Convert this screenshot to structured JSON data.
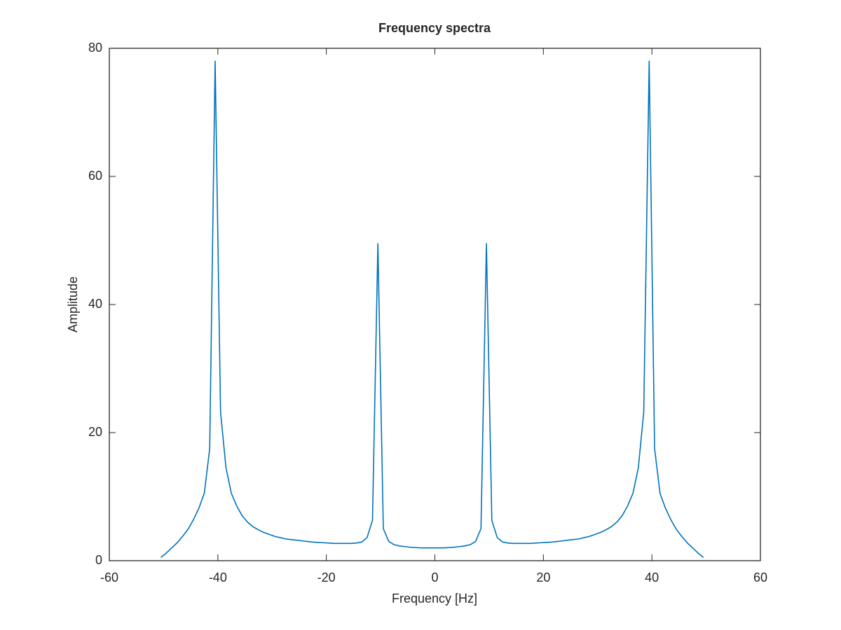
{
  "chart_data": {
    "type": "line",
    "title": "Frequency spectra",
    "xlabel": "Frequency [Hz]",
    "ylabel": "Amplitude",
    "x": [
      -50.5,
      -49.5,
      -48.5,
      -47.5,
      -46.5,
      -45.5,
      -44.5,
      -43.5,
      -42.5,
      -41.5,
      -40.5,
      -39.5,
      -38.5,
      -37.5,
      -36.5,
      -35.5,
      -34.5,
      -33.5,
      -32.5,
      -31.5,
      -30.5,
      -29.5,
      -28.5,
      -27.5,
      -26.5,
      -25.5,
      -24.5,
      -23.5,
      -22.5,
      -21.5,
      -20.5,
      -19.5,
      -18.5,
      -17.5,
      -16.5,
      -15.5,
      -14.5,
      -13.5,
      -12.5,
      -11.5,
      -10.5,
      -9.5,
      -8.5,
      -7.5,
      -6.5,
      -5.5,
      -4.5,
      -3.5,
      -2.5,
      -1.5,
      -0.5,
      0.5,
      1.5,
      2.5,
      3.5,
      4.5,
      5.5,
      6.5,
      7.5,
      8.5,
      9.5,
      10.5,
      11.5,
      12.5,
      13.5,
      14.5,
      15.5,
      16.5,
      17.5,
      18.5,
      19.5,
      20.5,
      21.5,
      22.5,
      23.5,
      24.5,
      25.5,
      26.5,
      27.5,
      28.5,
      29.5,
      30.5,
      31.5,
      32.5,
      33.5,
      34.5,
      35.5,
      36.5,
      37.5,
      38.5,
      39.5,
      40.5,
      41.5,
      42.5,
      43.5,
      44.5,
      45.5,
      46.5,
      47.5,
      48.5,
      49.5
    ],
    "series": [
      {
        "color": "#0072bd",
        "values": [
          0.5,
          1.2,
          2.0,
          2.8,
          3.8,
          4.9,
          6.4,
          8.2,
          10.5,
          17.5,
          78,
          23.2,
          14.5,
          10.5,
          8.5,
          7.0,
          6.0,
          5.3,
          4.8,
          4.4,
          4.1,
          3.8,
          3.6,
          3.4,
          3.3,
          3.2,
          3.1,
          3.0,
          2.9,
          2.85,
          2.8,
          2.75,
          2.7,
          2.7,
          2.7,
          2.7,
          2.75,
          2.9,
          3.6,
          6.3,
          49.5,
          5,
          3.0,
          2.5,
          2.3,
          2.2,
          2.1,
          2.05,
          2.0,
          2.0,
          2.0,
          2.0,
          2.0,
          2.05,
          2.1,
          2.2,
          2.3,
          2.5,
          3.0,
          5,
          49.5,
          6.3,
          3.6,
          2.9,
          2.75,
          2.7,
          2.7,
          2.7,
          2.7,
          2.75,
          2.8,
          2.85,
          2.9,
          3.0,
          3.1,
          3.2,
          3.3,
          3.4,
          3.6,
          3.8,
          4.1,
          4.4,
          4.8,
          5.3,
          6.0,
          7.0,
          8.5,
          10.5,
          14.5,
          23.2,
          78,
          17.5,
          10.5,
          8.2,
          6.4,
          4.9,
          3.8,
          2.8,
          2.0,
          1.2,
          0.5
        ]
      }
    ],
    "xlim": [
      -60,
      60
    ],
    "xticks": [
      -60,
      -40,
      -20,
      0,
      20,
      40,
      60
    ],
    "ylim": [
      0,
      80
    ],
    "yticks": [
      0,
      20,
      40,
      60,
      80
    ],
    "grid": false
  }
}
